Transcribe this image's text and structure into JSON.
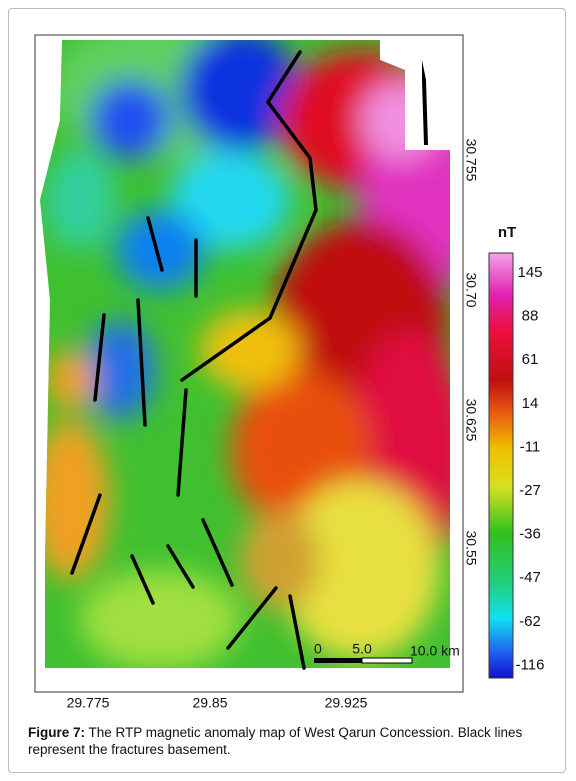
{
  "figure": {
    "x_ticks": [
      "29.775",
      "29.85",
      "29.925"
    ],
    "y_ticks": [
      "30.755",
      "30.70",
      "30.625",
      "30.55"
    ],
    "colorbar": {
      "title": "nT",
      "labels": [
        "145",
        "88",
        "61",
        "14",
        "-11",
        "-27",
        "-36",
        "-47",
        "-62",
        "-116"
      ]
    },
    "scale_bar": [
      "0",
      "5.0",
      "10.0 km"
    ],
    "caption": {
      "label": "Figure 7:",
      "text": "The RTP magnetic anomaly map of West Qarun Concession. Black lines represent the fractures basement."
    }
  }
}
